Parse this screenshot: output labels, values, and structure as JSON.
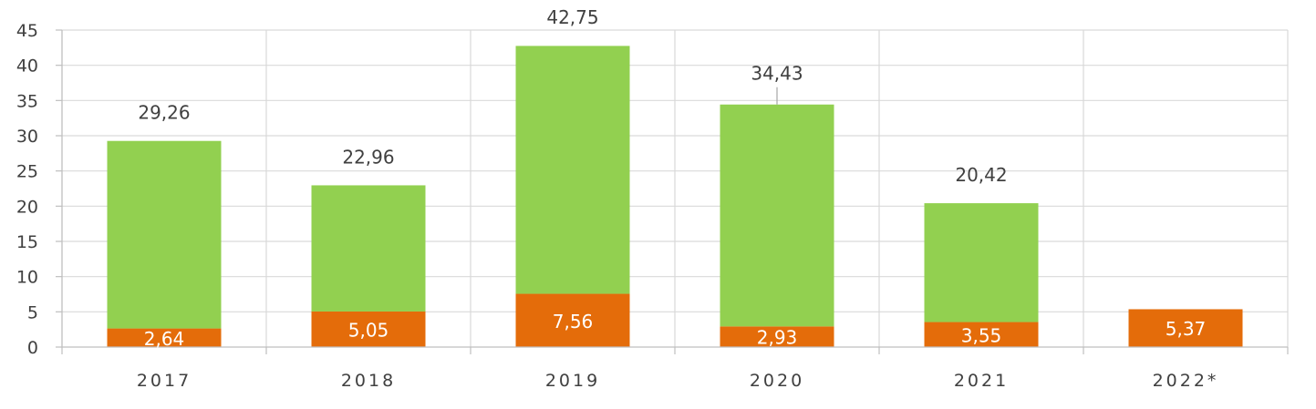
{
  "chart_data": {
    "type": "bar",
    "stacked": true,
    "categories": [
      "2017",
      "2018",
      "2019",
      "2020",
      "2021",
      "2022*"
    ],
    "series": [
      {
        "values": [
          2.64,
          5.05,
          7.56,
          2.93,
          3.55,
          5.37
        ],
        "labels": [
          "2,64",
          "5,05",
          "7,56",
          "2,93",
          "3,55",
          "5,37"
        ],
        "color": "#e46c0a"
      },
      {
        "values": [
          26.62,
          17.91,
          35.19,
          31.5,
          16.87,
          0
        ],
        "color": "#92d050"
      }
    ],
    "totals": [
      29.26,
      22.96,
      42.75,
      34.43,
      20.42,
      null
    ],
    "total_labels": [
      "29,26",
      "22,96",
      "42,75",
      "34,43",
      "20,42",
      ""
    ],
    "yticks": [
      "0",
      "5",
      "10",
      "15",
      "20",
      "25",
      "30",
      "35",
      "40",
      "45"
    ],
    "ylim": [
      0,
      45
    ],
    "grid": true,
    "title": "",
    "xlabel": "",
    "ylabel": "",
    "colors": {
      "gridline": "#d9d9d9",
      "axis": "#bfbfbf",
      "text": "#404040"
    }
  }
}
